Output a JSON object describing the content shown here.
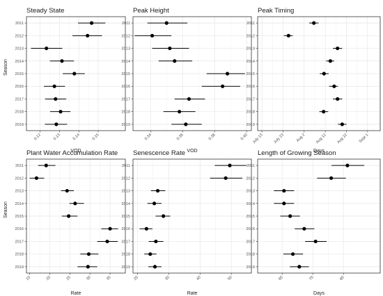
{
  "figure": {
    "ylabel": "Season"
  },
  "chart_data": [
    {
      "type": "scatter",
      "title": "Steady State",
      "xlabel": "VOD",
      "xlim": [
        0.113,
        0.164
      ],
      "xticks": [
        0.12,
        0.13,
        0.14,
        0.15
      ],
      "xtick_labels": [
        "0.12",
        "0.13",
        "0.14",
        "0.15"
      ],
      "categories": [
        "2011",
        "2012",
        "2013",
        "2014",
        "2015",
        "2016",
        "2017",
        "2018",
        "2019"
      ],
      "values": [
        0.1466,
        0.1445,
        0.1233,
        0.1313,
        0.1377,
        0.1274,
        0.128,
        0.1306,
        0.1284
      ],
      "lower": [
        0.1396,
        0.1367,
        0.1153,
        0.1251,
        0.1317,
        0.122,
        0.1226,
        0.1252,
        0.1225
      ],
      "upper": [
        0.1537,
        0.152,
        0.1315,
        0.1375,
        0.1431,
        0.1329,
        0.1335,
        0.1357,
        0.134
      ]
    },
    {
      "type": "scatter",
      "title": "Peak Height",
      "xlabel": "VOD",
      "xlim": [
        0.329,
        0.403
      ],
      "xticks": [
        0.34,
        0.36,
        0.38,
        0.4
      ],
      "xtick_labels": [
        "0.34",
        "0.36",
        "0.38",
        "0.40"
      ],
      "categories": [
        "2011",
        "2012",
        "2013",
        "2014",
        "2015",
        "2016",
        "2017",
        "2018",
        "2019"
      ],
      "values": [
        0.35,
        0.341,
        0.352,
        0.355,
        0.388,
        0.385,
        0.364,
        0.358,
        0.362
      ],
      "lower": [
        0.338,
        0.33,
        0.341,
        0.345,
        0.375,
        0.372,
        0.355,
        0.348,
        0.353
      ],
      "upper": [
        0.363,
        0.353,
        0.364,
        0.366,
        0.399,
        0.396,
        0.374,
        0.368,
        0.372
      ]
    },
    {
      "type": "scatter",
      "title": "Peak Timing",
      "xlabel": "Days",
      "xlim": [
        192,
        250
      ],
      "xticks": [
        194,
        204,
        214,
        224,
        234,
        244
      ],
      "xtick_labels": [
        "July 13",
        "July 23",
        "Aug 2",
        "Aug 12",
        "Aug 22",
        "Sept 1"
      ],
      "categories": [
        "2011",
        "2012",
        "2013",
        "2014",
        "2015",
        "2016",
        "2017",
        "2018",
        "2019"
      ],
      "values": [
        218.6,
        206.6,
        229.8,
        226.4,
        223.4,
        228.2,
        229.8,
        223.2,
        232.0
      ],
      "lower": [
        216.4,
        204.4,
        227.6,
        224.4,
        221.4,
        225.8,
        227.6,
        221.2,
        230.0
      ],
      "upper": [
        220.8,
        208.6,
        232.0,
        228.2,
        225.6,
        230.0,
        232.0,
        225.4,
        234.0
      ]
    },
    {
      "type": "scatter",
      "title": "Plant Water Accumulation Rate",
      "xlabel": "Rate",
      "xlim": [
        14.2,
        38.8
      ],
      "xticks": [
        15,
        20,
        25,
        30,
        35
      ],
      "xtick_labels": [
        "15",
        "20",
        "25",
        "30",
        "35"
      ],
      "categories": [
        "2011",
        "2012",
        "2013",
        "2014",
        "2015",
        "2016",
        "2017",
        "2018",
        "2019"
      ],
      "values": [
        19.1,
        16.7,
        24.3,
        26.3,
        24.7,
        35.0,
        34.3,
        29.7,
        29.5
      ],
      "lower": [
        17.1,
        15.0,
        22.8,
        24.9,
        23.0,
        32.8,
        31.8,
        27.6,
        26.9
      ],
      "upper": [
        21.4,
        18.6,
        26.0,
        28.5,
        26.9,
        37.0,
        36.9,
        32.1,
        31.8
      ]
    },
    {
      "type": "scatter",
      "title": "Senescence Rate",
      "xlabel": "Rate",
      "xlim": [
        18.6,
        56.4
      ],
      "xticks": [
        20,
        30,
        40,
        50
      ],
      "xtick_labels": [
        "20",
        "30",
        "40",
        "50"
      ],
      "categories": [
        "2011",
        "2012",
        "2013",
        "2014",
        "2015",
        "2016",
        "2017",
        "2018",
        "2019"
      ],
      "values": [
        49.5,
        48.2,
        26.5,
        25.4,
        28.3,
        22.9,
        25.9,
        24.1,
        25.6
      ],
      "lower": [
        44.7,
        43.2,
        24.3,
        23.2,
        25.8,
        20.7,
        23.6,
        22.2,
        23.5
      ],
      "upper": [
        54.8,
        53.5,
        28.9,
        27.7,
        30.5,
        24.8,
        28.3,
        26.1,
        27.7
      ]
    },
    {
      "type": "scatter",
      "title": "Length of Growing Season",
      "xlabel": "Days",
      "xlim": [
        52,
        92
      ],
      "xticks": [
        60,
        70,
        80
      ],
      "xtick_labels": [
        "60",
        "70",
        "80"
      ],
      "categories": [
        "2011",
        "2012",
        "2013",
        "2014",
        "2015",
        "2016",
        "2017",
        "2018",
        "2019"
      ],
      "values": [
        81.3,
        76.0,
        60.6,
        60.6,
        62.6,
        67.2,
        70.9,
        63.5,
        65.6
      ],
      "lower": [
        76.1,
        71.4,
        57.3,
        57.3,
        59.4,
        64.1,
        67.5,
        60.4,
        62.5
      ],
      "upper": [
        86.8,
        80.8,
        63.9,
        63.9,
        65.8,
        70.5,
        74.5,
        66.8,
        68.7
      ]
    }
  ]
}
